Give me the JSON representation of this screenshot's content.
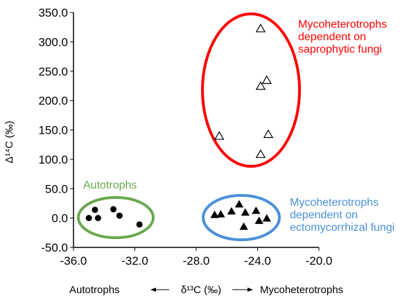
{
  "chart_data": {
    "type": "scatter",
    "xlim": [
      -36.0,
      -20.0
    ],
    "ylim": [
      -50.0,
      350.0
    ],
    "x_ticks": [
      "-36.0",
      "-32.0",
      "-28.0",
      "-24.0",
      "-20.0"
    ],
    "y_ticks": [
      "-50.0",
      "0.0",
      "50.0",
      "100.0",
      "150.0",
      "200.0",
      "250.0",
      "300.0",
      "350.0"
    ],
    "ylabel": "Δ¹⁴C (‰)",
    "xlabel": {
      "left": "Autotrophs",
      "center": "δ¹³C (‰)",
      "right": "Mycoheterotrophs"
    },
    "groups": [
      {
        "name": "Autotrophs",
        "label": "Autotrophs",
        "marker": "filled-circle",
        "color": "#6aa84f",
        "points": [
          {
            "x": -35.0,
            "y": 0
          },
          {
            "x": -34.6,
            "y": 14
          },
          {
            "x": -34.4,
            "y": 0
          },
          {
            "x": -33.4,
            "y": 15
          },
          {
            "x": -33.0,
            "y": 4
          },
          {
            "x": -31.7,
            "y": -11
          }
        ]
      },
      {
        "name": "Mycoheterotrophs dependent on ectomycorrhizal fungi",
        "label": "Mycoheterotrophs\ndependent on\nectomycorrhizal fungi",
        "marker": "filled-triangle",
        "color": "#4a90d9",
        "points": [
          {
            "x": -26.8,
            "y": 5
          },
          {
            "x": -26.4,
            "y": 6
          },
          {
            "x": -25.7,
            "y": 11
          },
          {
            "x": -25.2,
            "y": 23
          },
          {
            "x": -24.8,
            "y": 9
          },
          {
            "x": -24.9,
            "y": -15
          },
          {
            "x": -24.1,
            "y": 12
          },
          {
            "x": -23.9,
            "y": -5
          },
          {
            "x": -23.4,
            "y": -1
          }
        ]
      },
      {
        "name": "Mycoheterotrophs dependent on saprophytic fungi",
        "label": "Mycoheterotrophs\ndependent on\nsaprophytic fungi",
        "marker": "open-triangle",
        "color": "#ff0000",
        "points": [
          {
            "x": -23.8,
            "y": 322
          },
          {
            "x": -23.4,
            "y": 234
          },
          {
            "x": -23.8,
            "y": 224
          },
          {
            "x": -26.5,
            "y": 139
          },
          {
            "x": -23.3,
            "y": 142
          },
          {
            "x": -23.8,
            "y": 108
          }
        ]
      }
    ]
  }
}
